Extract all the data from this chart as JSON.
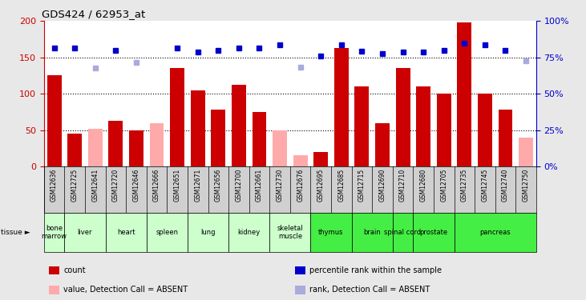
{
  "title": "GDS424 / 62953_at",
  "samples": [
    "GSM12636",
    "GSM12725",
    "GSM12641",
    "GSM12720",
    "GSM12646",
    "GSM12666",
    "GSM12651",
    "GSM12671",
    "GSM12656",
    "GSM12700",
    "GSM12661",
    "GSM12730",
    "GSM12676",
    "GSM12695",
    "GSM12685",
    "GSM12715",
    "GSM12690",
    "GSM12710",
    "GSM12680",
    "GSM12705",
    "GSM12735",
    "GSM12745",
    "GSM12740",
    "GSM12750"
  ],
  "tissues": [
    {
      "name": "bone\nmarrow",
      "span": [
        0,
        1
      ],
      "color": "#ccffcc"
    },
    {
      "name": "liver",
      "span": [
        1,
        3
      ],
      "color": "#ccffcc"
    },
    {
      "name": "heart",
      "span": [
        3,
        5
      ],
      "color": "#ccffcc"
    },
    {
      "name": "spleen",
      "span": [
        5,
        7
      ],
      "color": "#ccffcc"
    },
    {
      "name": "lung",
      "span": [
        7,
        9
      ],
      "color": "#ccffcc"
    },
    {
      "name": "kidney",
      "span": [
        9,
        11
      ],
      "color": "#ccffcc"
    },
    {
      "name": "skeletal\nmuscle",
      "span": [
        11,
        13
      ],
      "color": "#ccffcc"
    },
    {
      "name": "thymus",
      "span": [
        13,
        15
      ],
      "color": "#44ee44"
    },
    {
      "name": "brain",
      "span": [
        15,
        17
      ],
      "color": "#44ee44"
    },
    {
      "name": "spinal cord",
      "span": [
        17,
        18
      ],
      "color": "#44ee44"
    },
    {
      "name": "prostate",
      "span": [
        18,
        20
      ],
      "color": "#44ee44"
    },
    {
      "name": "pancreas",
      "span": [
        20,
        24
      ],
      "color": "#44ee44"
    }
  ],
  "bar_values": [
    126,
    45,
    null,
    63,
    50,
    60,
    135,
    105,
    78,
    112,
    75,
    null,
    null,
    20,
    163,
    110,
    59,
    135,
    110,
    100,
    198,
    100,
    78,
    null
  ],
  "bar_absent": [
    null,
    null,
    52,
    null,
    null,
    60,
    null,
    null,
    null,
    null,
    null,
    50,
    15,
    null,
    null,
    null,
    null,
    null,
    null,
    null,
    null,
    null,
    null,
    40
  ],
  "rank_values": [
    163,
    163,
    null,
    160,
    null,
    null,
    163,
    157,
    160,
    163,
    163,
    167,
    null,
    152,
    167,
    158,
    155,
    157,
    157,
    160,
    170,
    167,
    160,
    null
  ],
  "rank_absent": [
    null,
    null,
    135,
    null,
    143,
    null,
    null,
    null,
    null,
    null,
    null,
    null,
    137,
    null,
    null,
    null,
    null,
    null,
    null,
    null,
    null,
    null,
    null,
    145
  ],
  "ylim_left": [
    0,
    200
  ],
  "yticks_left": [
    0,
    50,
    100,
    150,
    200
  ],
  "ytick_labels_right": [
    "0%",
    "25%",
    "50%",
    "75%",
    "100%"
  ],
  "bar_color": "#cc0000",
  "bar_absent_color": "#ffaaaa",
  "rank_color": "#0000cc",
  "rank_absent_color": "#aaaadd",
  "grid_color": "#000000",
  "bg_color": "#e8e8e8",
  "plot_bg": "#ffffff",
  "sample_bg": "#d0d0d0"
}
